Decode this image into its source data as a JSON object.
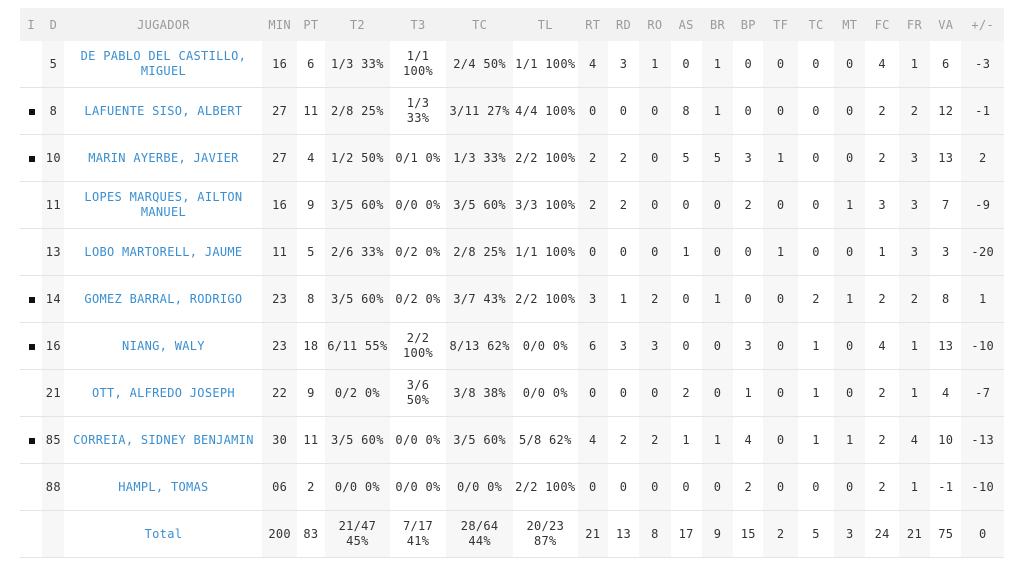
{
  "columns": [
    "I",
    "D",
    "JUGADOR",
    "MIN",
    "PT",
    "T2",
    "T3",
    "TC",
    "TL",
    "RT",
    "RD",
    "RO",
    "AS",
    "BR",
    "BP",
    "TF",
    "TC",
    "MT",
    "FC",
    "FR",
    "VA",
    "+/-"
  ],
  "players": [
    {
      "starter": false,
      "dorsal": "5",
      "name": "DE PABLO DEL CASTILLO, MIGUEL",
      "min": "16",
      "pt": "6",
      "t2": "1/3 33%",
      "t3": "1/1 100%",
      "tc": "2/4 50%",
      "tl": "1/1 100%",
      "rt": "4",
      "rd": "3",
      "ro": "1",
      "as": "0",
      "br": "1",
      "bp": "0",
      "tf": "0",
      "tc2": "0",
      "mt": "0",
      "fc": "4",
      "fr": "1",
      "va": "6",
      "pm": "-3"
    },
    {
      "starter": true,
      "dorsal": "8",
      "name": "LAFUENTE SISO, ALBERT",
      "min": "27",
      "pt": "11",
      "t2": "2/8 25%",
      "t3": "1/3 33%",
      "tc": "3/11 27%",
      "tl": "4/4 100%",
      "rt": "0",
      "rd": "0",
      "ro": "0",
      "as": "8",
      "br": "1",
      "bp": "0",
      "tf": "0",
      "tc2": "0",
      "mt": "0",
      "fc": "2",
      "fr": "2",
      "va": "12",
      "pm": "-1"
    },
    {
      "starter": true,
      "dorsal": "10",
      "name": "MARIN AYERBE, JAVIER",
      "min": "27",
      "pt": "4",
      "t2": "1/2 50%",
      "t3": "0/1 0%",
      "tc": "1/3 33%",
      "tl": "2/2 100%",
      "rt": "2",
      "rd": "2",
      "ro": "0",
      "as": "5",
      "br": "5",
      "bp": "3",
      "tf": "1",
      "tc2": "0",
      "mt": "0",
      "fc": "2",
      "fr": "3",
      "va": "13",
      "pm": "2"
    },
    {
      "starter": false,
      "dorsal": "11",
      "name": "LOPES MARQUES, AILTON MANUEL",
      "min": "16",
      "pt": "9",
      "t2": "3/5 60%",
      "t3": "0/0 0%",
      "tc": "3/5 60%",
      "tl": "3/3 100%",
      "rt": "2",
      "rd": "2",
      "ro": "0",
      "as": "0",
      "br": "0",
      "bp": "2",
      "tf": "0",
      "tc2": "0",
      "mt": "1",
      "fc": "3",
      "fr": "3",
      "va": "7",
      "pm": "-9"
    },
    {
      "starter": false,
      "dorsal": "13",
      "name": "LOBO MARTORELL, JAUME",
      "min": "11",
      "pt": "5",
      "t2": "2/6 33%",
      "t3": "0/2 0%",
      "tc": "2/8 25%",
      "tl": "1/1 100%",
      "rt": "0",
      "rd": "0",
      "ro": "0",
      "as": "1",
      "br": "0",
      "bp": "0",
      "tf": "1",
      "tc2": "0",
      "mt": "0",
      "fc": "1",
      "fr": "3",
      "va": "3",
      "pm": "-20"
    },
    {
      "starter": true,
      "dorsal": "14",
      "name": "GOMEZ BARRAL, RODRIGO",
      "min": "23",
      "pt": "8",
      "t2": "3/5 60%",
      "t3": "0/2 0%",
      "tc": "3/7 43%",
      "tl": "2/2 100%",
      "rt": "3",
      "rd": "1",
      "ro": "2",
      "as": "0",
      "br": "1",
      "bp": "0",
      "tf": "0",
      "tc2": "2",
      "mt": "1",
      "fc": "2",
      "fr": "2",
      "va": "8",
      "pm": "1"
    },
    {
      "starter": true,
      "dorsal": "16",
      "name": "NIANG, WALY",
      "min": "23",
      "pt": "18",
      "t2": "6/11 55%",
      "t3": "2/2 100%",
      "tc": "8/13 62%",
      "tl": "0/0 0%",
      "rt": "6",
      "rd": "3",
      "ro": "3",
      "as": "0",
      "br": "0",
      "bp": "3",
      "tf": "0",
      "tc2": "1",
      "mt": "0",
      "fc": "4",
      "fr": "1",
      "va": "13",
      "pm": "-10"
    },
    {
      "starter": false,
      "dorsal": "21",
      "name": "OTT, ALFREDO JOSEPH",
      "min": "22",
      "pt": "9",
      "t2": "0/2 0%",
      "t3": "3/6 50%",
      "tc": "3/8 38%",
      "tl": "0/0 0%",
      "rt": "0",
      "rd": "0",
      "ro": "0",
      "as": "2",
      "br": "0",
      "bp": "1",
      "tf": "0",
      "tc2": "1",
      "mt": "0",
      "fc": "2",
      "fr": "1",
      "va": "4",
      "pm": "-7"
    },
    {
      "starter": true,
      "dorsal": "85",
      "name": "CORREIA, SIDNEY BENJAMIN",
      "min": "30",
      "pt": "11",
      "t2": "3/5 60%",
      "t3": "0/0 0%",
      "tc": "3/5 60%",
      "tl": "5/8 62%",
      "rt": "4",
      "rd": "2",
      "ro": "2",
      "as": "1",
      "br": "1",
      "bp": "4",
      "tf": "0",
      "tc2": "1",
      "mt": "1",
      "fc": "2",
      "fr": "4",
      "va": "10",
      "pm": "-13"
    },
    {
      "starter": false,
      "dorsal": "88",
      "name": "HAMPL, TOMAS",
      "min": "06",
      "pt": "2",
      "t2": "0/0 0%",
      "t3": "0/0 0%",
      "tc": "0/0 0%",
      "tl": "2/2 100%",
      "rt": "0",
      "rd": "0",
      "ro": "0",
      "as": "0",
      "br": "0",
      "bp": "2",
      "tf": "0",
      "tc2": "0",
      "mt": "0",
      "fc": "2",
      "fr": "1",
      "va": "-1",
      "pm": "-10"
    }
  ],
  "total": {
    "label": "Total",
    "min": "200",
    "pt": "83",
    "t2": "21/47 45%",
    "t3": "7/17 41%",
    "tc": "28/64 44%",
    "tl": "20/23 87%",
    "rt": "21",
    "rd": "13",
    "ro": "8",
    "as": "17",
    "br": "9",
    "bp": "15",
    "tf": "2",
    "tc2": "5",
    "mt": "3",
    "fc": "24",
    "fr": "21",
    "va": "75",
    "pm": "0"
  }
}
